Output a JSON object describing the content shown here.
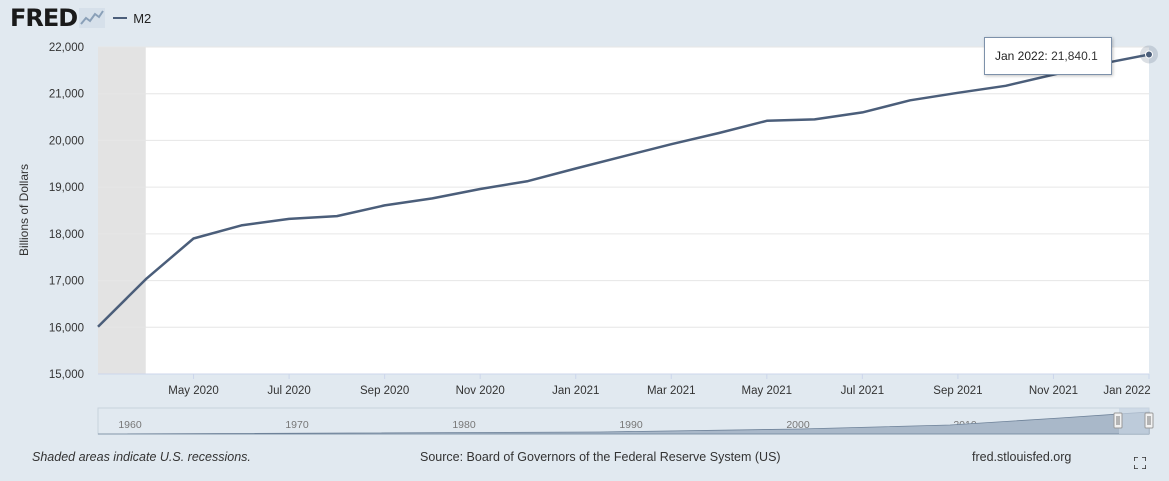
{
  "header": {
    "logo_text": "FRED",
    "legend_label": "M2"
  },
  "tooltip": {
    "date": "Jan 2022:",
    "value": "21,840.1"
  },
  "footer": {
    "note": "Shaded areas indicate U.S. recessions.",
    "source": "Source: Board of Governors of the Federal Reserve System (US)",
    "site": "fred.stlouisfed.org"
  },
  "colors": {
    "series": "#4b5e7a",
    "recession": "#e3e3e3",
    "background": "#e1e9f0",
    "plot": "#ffffff"
  },
  "navigator": {
    "labels": [
      "1960",
      "1970",
      "1980",
      "1990",
      "2000",
      "2010"
    ]
  },
  "chart_data": {
    "type": "line",
    "title": "",
    "xlabel": "",
    "ylabel": "Billions of Dollars",
    "ylim": [
      15000,
      22000
    ],
    "yticks": [
      "15,000",
      "16,000",
      "17,000",
      "18,000",
      "19,000",
      "20,000",
      "21,000",
      "22,000"
    ],
    "ytick_values": [
      15000,
      16000,
      17000,
      18000,
      19000,
      20000,
      21000,
      22000
    ],
    "xlim": [
      "2020-03",
      "2022-01"
    ],
    "xticks": [
      "May 2020",
      "Jul 2020",
      "Sep 2020",
      "Nov 2020",
      "Jan 2021",
      "Mar 2021",
      "May 2021",
      "Jul 2021",
      "Sep 2021",
      "Nov 2021",
      "Jan 2022"
    ],
    "xtick_values": [
      "2020-05",
      "2020-07",
      "2020-09",
      "2020-11",
      "2021-01",
      "2021-03",
      "2021-05",
      "2021-07",
      "2021-09",
      "2021-11",
      "2022-01"
    ],
    "recession": [
      "2020-03",
      "2020-04"
    ],
    "grid": true,
    "legend": "top-left",
    "series": [
      {
        "name": "M2",
        "x": [
          "2020-03",
          "2020-04",
          "2020-05",
          "2020-06",
          "2020-07",
          "2020-08",
          "2020-09",
          "2020-10",
          "2020-11",
          "2020-12",
          "2021-01",
          "2021-02",
          "2021-03",
          "2021-04",
          "2021-05",
          "2021-06",
          "2021-07",
          "2021-08",
          "2021-09",
          "2021-10",
          "2021-11",
          "2021-12",
          "2022-01"
        ],
        "values": [
          16010,
          17030,
          17900,
          18180,
          18320,
          18380,
          18610,
          18760,
          18960,
          19130,
          19400,
          19660,
          19920,
          20160,
          20420,
          20450,
          20600,
          20860,
          21020,
          21170,
          21410,
          21640,
          21840.1
        ]
      }
    ]
  }
}
